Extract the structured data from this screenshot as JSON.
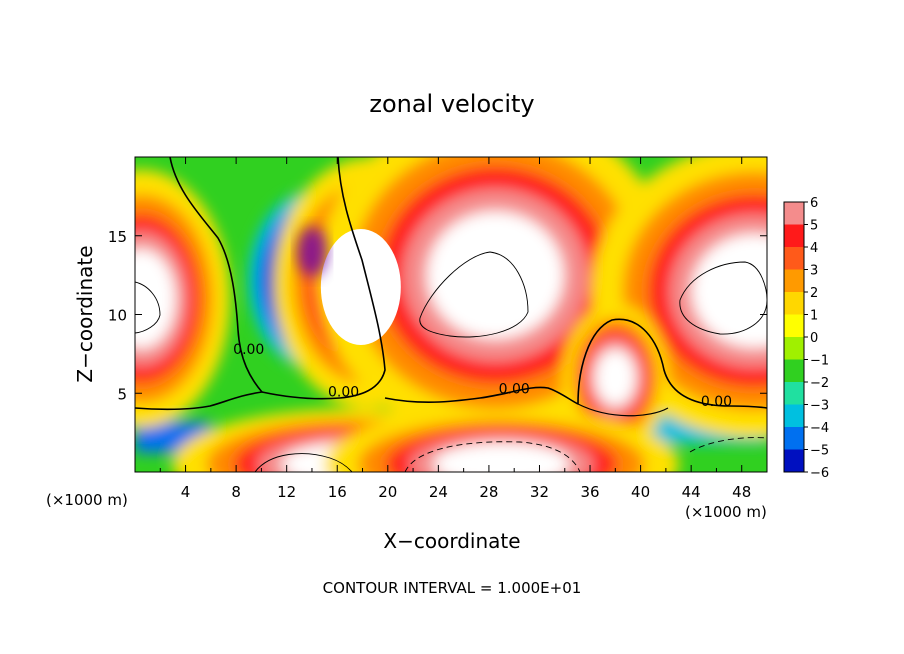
{
  "chart_data": {
    "type": "heatmap",
    "title": "zonal velocity",
    "xlabel": "X−coordinate",
    "ylabel": "Z−coordinate",
    "x_unit_left": "(×1000 m)",
    "x_unit_right": "(×1000 m)",
    "xlim": [
      0,
      50
    ],
    "ylim": [
      0,
      20
    ],
    "x_ticks": [
      4,
      8,
      12,
      16,
      20,
      24,
      28,
      32,
      36,
      40,
      44,
      48
    ],
    "y_ticks": [
      5,
      10,
      15
    ],
    "footer": "CONTOUR INTERVAL = 1.000E+01",
    "colorbar": {
      "levels": [
        6,
        5,
        4,
        3,
        2,
        1,
        0,
        -1,
        -2,
        -3,
        -4,
        -5,
        -6
      ],
      "labels": [
        "6",
        "5",
        "4",
        "3",
        "2",
        "1",
        "0",
        "−1",
        "−2",
        "−3",
        "−4",
        "−5",
        "−6"
      ],
      "colors": [
        "#f48c8c",
        "#ff1a1a",
        "#ff5a1a",
        "#ff9a00",
        "#ffd700",
        "#ffff00",
        "#a0f000",
        "#30d020",
        "#20e0a0",
        "#00c0e0",
        "#0070f0",
        "#0010c0",
        "#7000a8"
      ]
    },
    "features": [
      {
        "kind": "positive-max",
        "x": 18.5,
        "z": 12.0,
        "rx": 3.2,
        "rz": 3.4
      },
      {
        "kind": "positive-max",
        "x": 28.5,
        "z": 12.5,
        "rx": 6.0,
        "rz": 4.5
      },
      {
        "kind": "positive-max",
        "x": 49.0,
        "z": 11.5,
        "rx": 5.5,
        "rz": 4.0
      },
      {
        "kind": "positive-max",
        "x": 0.5,
        "z": 11.0,
        "rx": 3.0,
        "rz": 3.5
      },
      {
        "kind": "positive-max",
        "x": 38.0,
        "z": 6.0,
        "rx": 1.8,
        "rz": 2.0
      },
      {
        "kind": "positive-max",
        "x": 17.0,
        "z": 0.5,
        "rx": 6.0,
        "rz": 1.5
      },
      {
        "kind": "positive-max",
        "x": 29.0,
        "z": 0.5,
        "rx": 6.0,
        "rz": 1.5
      },
      {
        "kind": "negative-min",
        "x": 14.0,
        "z": 14.0,
        "rx": 1.0,
        "rz": 1.0
      }
    ],
    "contour_labels": [
      {
        "text": "0.00",
        "x": 9.0,
        "z": 7.5
      },
      {
        "text": "0.00",
        "x": 16.5,
        "z": 4.8
      },
      {
        "text": "0.00",
        "x": 30.0,
        "z": 5.0
      },
      {
        "text": "0.00",
        "x": 46.0,
        "z": 4.2
      }
    ]
  }
}
